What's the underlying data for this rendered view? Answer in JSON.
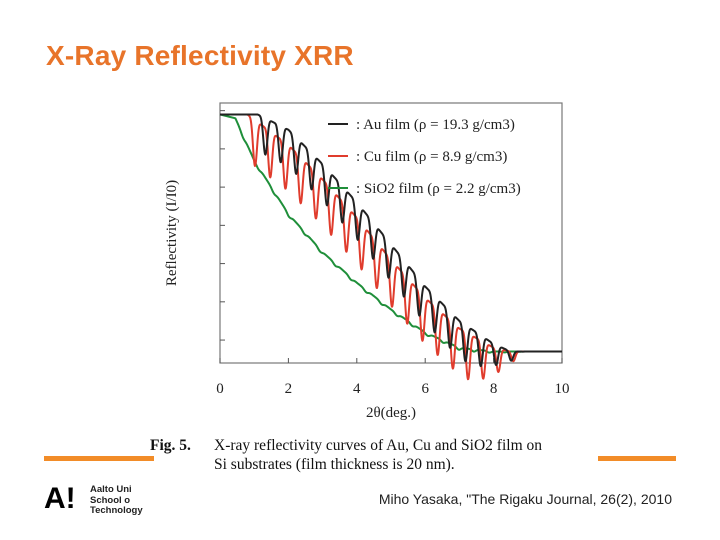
{
  "slide": {
    "title": "X-Ray Reflectivity XRR",
    "accent_color": "#f28c28",
    "title_color": "#e8742a"
  },
  "logo": {
    "mark": "A!",
    "lines": [
      "Aalto Uni",
      "School o",
      "Technology"
    ]
  },
  "citation": "Miho Yasaka, \"The Rigaku Journal, 26(2), 2010",
  "caption": {
    "fig_label": "Fig. 5.",
    "line1": "X-ray reflectivity curves of Au, Cu and SiO2 film on",
    "line2": "Si substrates (film thickness is 20 nm)."
  },
  "chart_data": {
    "type": "line",
    "xlabel": "2θ(deg.)",
    "ylabel": "Reflectivity (I/I0)",
    "xlim": [
      0,
      10
    ],
    "xticks": [
      0,
      2,
      4,
      6,
      8,
      10
    ],
    "yscale": "log",
    "ytick_labels": "none",
    "grid": false,
    "legend_position": "top-right",
    "series": [
      {
        "name": ": Au film (ρ = 19.3 g/cm3)",
        "color": "#222222",
        "critical_angle": 1.1,
        "fringe_period": 0.45,
        "fringe_amplitude": 0.95,
        "x": [
          0,
          1.1,
          2,
          3,
          4,
          5,
          6,
          7,
          8,
          8.5,
          9,
          10
        ],
        "log_reflectivity": [
          -0.1,
          -0.1,
          -0.5,
          -1.4,
          -2.4,
          -3.5,
          -4.6,
          -5.5,
          -6.1,
          -6.3,
          -6.3,
          -6.3
        ]
      },
      {
        "name": ": Cu film (ρ = 8.9 g/cm3)",
        "color": "#e03c2d",
        "critical_angle": 0.8,
        "fringe_period": 0.445,
        "fringe_amplitude": 1.2,
        "x": [
          0,
          0.8,
          2,
          3,
          4,
          5,
          6,
          7,
          8,
          8.5,
          9,
          10
        ],
        "log_reflectivity": [
          -0.1,
          -0.1,
          -0.9,
          -1.8,
          -2.8,
          -3.9,
          -4.9,
          -5.7,
          -6.2,
          -6.3,
          -6.3,
          -6.3
        ]
      },
      {
        "name": ": SiO2 film (ρ = 2.2 g/cm3)",
        "color": "#1f8f3a",
        "critical_angle": 0.45,
        "fringe_period": 0.45,
        "fringe_amplitude": 0.06,
        "x": [
          0,
          0.45,
          1,
          2,
          3,
          4,
          5,
          6,
          7,
          8,
          9,
          10
        ],
        "log_reflectivity": [
          -0.1,
          -0.2,
          -1.3,
          -2.7,
          -3.7,
          -4.5,
          -5.2,
          -5.8,
          -6.2,
          -6.3,
          -6.3,
          -6.3
        ]
      }
    ]
  }
}
